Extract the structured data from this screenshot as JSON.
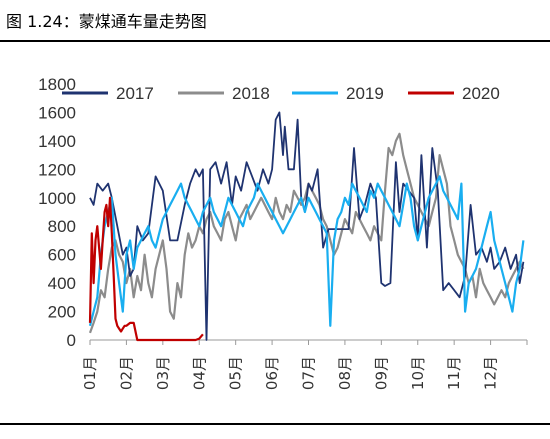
{
  "figure": {
    "title": "图 1.24：蒙煤通车量走势图"
  },
  "colors": {
    "2017": "#1f3370",
    "2018": "#8c8c8c",
    "2019": "#19aef0",
    "2020": "#c00000"
  },
  "chart_data": {
    "type": "line",
    "title": "",
    "xlabel": "",
    "ylabel": "",
    "ylim": [
      0,
      1800
    ],
    "yticks": [
      0,
      200,
      400,
      600,
      800,
      1000,
      1200,
      1400,
      1600,
      1800
    ],
    "categories": [
      "01月",
      "02月",
      "03月",
      "04月",
      "05月",
      "06月",
      "07月",
      "08月",
      "09月",
      "10月",
      "11月",
      "12月"
    ],
    "grid": false,
    "legend": "top",
    "series": [
      {
        "name": "2017",
        "color": "#1f3370",
        "x": [
          0.0,
          0.1,
          0.2,
          0.35,
          0.5,
          0.6,
          0.75,
          0.9,
          1.0,
          1.1,
          1.2,
          1.3,
          1.45,
          1.6,
          1.8,
          2.0,
          2.2,
          2.4,
          2.6,
          2.75,
          2.9,
          3.0,
          3.1,
          3.2,
          3.3,
          3.45,
          3.6,
          3.75,
          3.9,
          4.0,
          4.15,
          4.3,
          4.45,
          4.6,
          4.75,
          4.9,
          5.0,
          5.1,
          5.2,
          5.3,
          5.35,
          5.45,
          5.6,
          5.7,
          5.8,
          5.9,
          6.0,
          6.1,
          6.25,
          6.4,
          6.55,
          6.7,
          6.85,
          7.0,
          7.1,
          7.25,
          7.4,
          7.55,
          7.7,
          7.85,
          8.0,
          8.1,
          8.25,
          8.4,
          8.5,
          8.6,
          8.75,
          8.9,
          9.0,
          9.1,
          9.25,
          9.4,
          9.55,
          9.7,
          9.85,
          10.0,
          10.15,
          10.3,
          10.45,
          10.6,
          10.75,
          10.9,
          11.0,
          11.1,
          11.25,
          11.4,
          11.55,
          11.7,
          11.8,
          11.9
        ],
        "values": [
          1000,
          950,
          1100,
          1050,
          1100,
          1000,
          800,
          600,
          650,
          450,
          500,
          800,
          700,
          750,
          1150,
          1050,
          700,
          700,
          950,
          1100,
          1200,
          1150,
          1200,
          0,
          1200,
          1250,
          1100,
          1250,
          950,
          1150,
          1050,
          1250,
          1150,
          1050,
          1200,
          1100,
          1200,
          1550,
          1600,
          1300,
          1500,
          1200,
          1200,
          1550,
          1000,
          900,
          1100,
          1050,
          1200,
          650,
          780,
          780,
          780,
          780,
          780,
          1350,
          850,
          950,
          1100,
          1000,
          400,
          380,
          400,
          1250,
          900,
          1100,
          1050,
          1000,
          700,
          1300,
          650,
          1350,
          1050,
          350,
          400,
          350,
          300,
          450,
          950,
          600,
          650,
          550,
          650,
          500,
          550,
          650,
          500,
          600,
          400,
          550
        ]
      },
      {
        "name": "2018",
        "color": "#8c8c8c",
        "x": [
          0.0,
          0.1,
          0.2,
          0.3,
          0.4,
          0.5,
          0.6,
          0.7,
          0.8,
          0.9,
          1.0,
          1.1,
          1.2,
          1.3,
          1.4,
          1.5,
          1.6,
          1.7,
          1.8,
          1.9,
          2.0,
          2.1,
          2.2,
          2.3,
          2.4,
          2.5,
          2.6,
          2.7,
          2.8,
          2.9,
          3.0,
          3.1,
          3.2,
          3.3,
          3.4,
          3.5,
          3.6,
          3.7,
          3.8,
          3.9,
          4.0,
          4.1,
          4.2,
          4.3,
          4.4,
          4.5,
          4.6,
          4.7,
          4.8,
          4.9,
          5.0,
          5.1,
          5.2,
          5.3,
          5.4,
          5.5,
          5.6,
          5.7,
          5.8,
          5.9,
          6.0,
          6.1,
          6.2,
          6.3,
          6.4,
          6.5,
          6.6,
          6.7,
          6.8,
          6.9,
          7.0,
          7.1,
          7.2,
          7.3,
          7.4,
          7.5,
          7.6,
          7.7,
          7.8,
          7.9,
          8.0,
          8.1,
          8.2,
          8.3,
          8.4,
          8.5,
          8.6,
          8.7,
          8.8,
          8.9,
          9.0,
          9.1,
          9.2,
          9.3,
          9.4,
          9.5,
          9.6,
          9.7,
          9.8,
          9.9,
          10.0,
          10.1,
          10.2,
          10.3,
          10.4,
          10.5,
          10.6,
          10.7,
          10.8,
          10.9,
          11.0,
          11.1,
          11.2,
          11.3,
          11.4,
          11.5,
          11.6,
          11.7,
          11.8,
          11.9
        ],
        "values": [
          50,
          120,
          200,
          350,
          300,
          500,
          650,
          700,
          600,
          550,
          400,
          500,
          300,
          450,
          350,
          600,
          400,
          300,
          500,
          600,
          700,
          500,
          200,
          150,
          400,
          300,
          600,
          750,
          650,
          700,
          800,
          750,
          850,
          900,
          800,
          750,
          700,
          850,
          900,
          800,
          700,
          850,
          900,
          950,
          850,
          900,
          950,
          1000,
          950,
          900,
          850,
          1000,
          900,
          850,
          950,
          900,
          1050,
          1000,
          950,
          1000,
          1100,
          1050,
          1000,
          950,
          850,
          800,
          700,
          600,
          650,
          750,
          850,
          800,
          750,
          900,
          850,
          800,
          750,
          700,
          800,
          750,
          700,
          1050,
          1350,
          1300,
          1400,
          1450,
          1300,
          1200,
          1100,
          1000,
          950,
          900,
          850,
          800,
          900,
          1000,
          1300,
          1200,
          1100,
          800,
          700,
          600,
          550,
          500,
          400,
          450,
          300,
          500,
          400,
          350,
          300,
          250,
          300,
          350,
          300,
          400,
          450,
          500,
          550,
          500
        ]
      },
      {
        "name": "2019",
        "color": "#19aef0",
        "x": [
          0.0,
          0.1,
          0.2,
          0.3,
          0.4,
          0.5,
          0.6,
          0.7,
          0.8,
          0.9,
          1.0,
          1.1,
          1.2,
          1.3,
          1.4,
          1.5,
          1.6,
          1.7,
          1.8,
          1.9,
          2.0,
          2.1,
          2.2,
          2.3,
          2.4,
          2.5,
          2.6,
          2.7,
          2.8,
          2.9,
          3.0,
          3.1,
          3.2,
          3.3,
          3.4,
          3.5,
          3.6,
          3.7,
          3.8,
          3.9,
          4.0,
          4.1,
          4.2,
          4.3,
          4.4,
          4.5,
          4.6,
          4.7,
          4.8,
          4.9,
          5.0,
          5.1,
          5.2,
          5.3,
          5.4,
          5.5,
          5.6,
          5.7,
          5.8,
          5.9,
          6.0,
          6.1,
          6.2,
          6.3,
          6.4,
          6.5,
          6.6,
          6.7,
          6.8,
          6.9,
          7.0,
          7.1,
          7.2,
          7.3,
          7.4,
          7.5,
          7.6,
          7.7,
          7.8,
          7.9,
          8.0,
          8.1,
          8.2,
          8.3,
          8.4,
          8.5,
          8.6,
          8.7,
          8.8,
          8.9,
          9.0,
          9.1,
          9.2,
          9.3,
          9.4,
          9.5,
          9.6,
          9.7,
          9.8,
          9.9,
          10.0,
          10.1,
          10.2,
          10.3,
          10.4,
          10.5,
          10.6,
          10.7,
          10.8,
          10.9,
          11.0,
          11.1,
          11.2,
          11.3,
          11.4,
          11.5,
          11.6,
          11.7,
          11.8,
          11.9
        ],
        "values": [
          100,
          200,
          300,
          600,
          800,
          900,
          1000,
          600,
          400,
          200,
          600,
          700,
          500,
          650,
          700,
          750,
          800,
          700,
          650,
          750,
          850,
          900,
          950,
          1000,
          1050,
          1100,
          1000,
          950,
          900,
          850,
          800,
          900,
          950,
          1000,
          900,
          850,
          800,
          900,
          1000,
          950,
          900,
          850,
          800,
          900,
          950,
          1000,
          1100,
          1050,
          1000,
          950,
          900,
          850,
          800,
          750,
          800,
          850,
          900,
          950,
          1000,
          900,
          1000,
          950,
          900,
          850,
          800,
          750,
          100,
          700,
          850,
          900,
          1000,
          950,
          1100,
          1050,
          1000,
          950,
          900,
          1050,
          1000,
          1100,
          1050,
          1000,
          950,
          900,
          850,
          800,
          950,
          1100,
          1000,
          800,
          700,
          800,
          900,
          1000,
          1050,
          1100,
          1150,
          1050,
          1000,
          950,
          900,
          850,
          1100,
          200,
          400,
          450,
          500,
          600,
          700,
          800,
          900,
          700,
          600,
          500,
          400,
          300,
          200,
          400,
          500,
          700
        ]
      },
      {
        "name": "2020",
        "color": "#c00000",
        "x": [
          0.0,
          0.05,
          0.1,
          0.15,
          0.2,
          0.25,
          0.3,
          0.35,
          0.4,
          0.45,
          0.5,
          0.55,
          0.6,
          0.65,
          0.7,
          0.75,
          0.8,
          0.85,
          0.9,
          0.95,
          1.0,
          1.1,
          1.2,
          1.3,
          1.4,
          1.5,
          1.6,
          1.7,
          1.8,
          1.9,
          2.0,
          2.1,
          2.2,
          2.3,
          2.4,
          2.5,
          2.6,
          2.7,
          2.8,
          2.9,
          3.0,
          3.1
        ],
        "values": [
          120,
          750,
          400,
          700,
          800,
          650,
          500,
          700,
          900,
          950,
          800,
          1000,
          750,
          450,
          150,
          100,
          80,
          60,
          80,
          100,
          100,
          120,
          120,
          0,
          0,
          0,
          0,
          0,
          0,
          0,
          0,
          0,
          0,
          0,
          0,
          0,
          0,
          0,
          0,
          0,
          10,
          40
        ]
      }
    ]
  }
}
